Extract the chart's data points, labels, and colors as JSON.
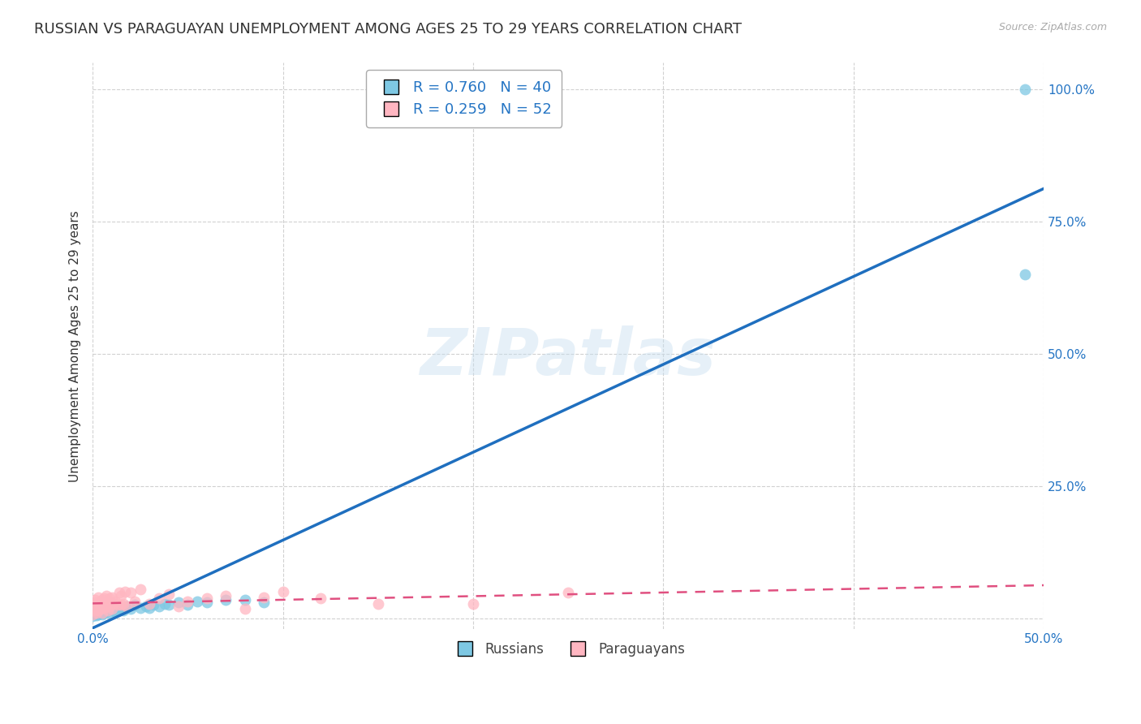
{
  "title": "RUSSIAN VS PARAGUAYAN UNEMPLOYMENT AMONG AGES 25 TO 29 YEARS CORRELATION CHART",
  "source": "Source: ZipAtlas.com",
  "ylabel": "Unemployment Among Ages 25 to 29 years",
  "xlim": [
    0.0,
    0.5
  ],
  "ylim": [
    -0.02,
    1.05
  ],
  "watermark": "ZIPatlas",
  "russian_color": "#7ec8e3",
  "paraguayan_color": "#ffb6c1",
  "russian_line_color": "#1f6fbf",
  "paraguayan_line_color": "#e05080",
  "grid_color": "#cccccc",
  "background_color": "#ffffff",
  "title_fontsize": 13,
  "axis_label_fontsize": 11,
  "tick_fontsize": 11,
  "legend_fontsize": 13,
  "russian_x": [
    0.0,
    0.001,
    0.001,
    0.002,
    0.002,
    0.003,
    0.003,
    0.004,
    0.004,
    0.005,
    0.005,
    0.006,
    0.007,
    0.008,
    0.009,
    0.01,
    0.011,
    0.012,
    0.013,
    0.015,
    0.016,
    0.018,
    0.02,
    0.022,
    0.025,
    0.028,
    0.03,
    0.032,
    0.035,
    0.038,
    0.04,
    0.045,
    0.05,
    0.055,
    0.06,
    0.07,
    0.08,
    0.09,
    0.49,
    0.49
  ],
  "russian_y": [
    0.005,
    0.008,
    0.01,
    0.006,
    0.012,
    0.008,
    0.015,
    0.01,
    0.012,
    0.008,
    0.015,
    0.01,
    0.012,
    0.015,
    0.01,
    0.015,
    0.018,
    0.012,
    0.015,
    0.02,
    0.015,
    0.022,
    0.018,
    0.025,
    0.02,
    0.022,
    0.02,
    0.025,
    0.022,
    0.028,
    0.025,
    0.03,
    0.025,
    0.032,
    0.03,
    0.035,
    0.035,
    0.03,
    0.65,
    1.0
  ],
  "paraguayan_x": [
    0.0,
    0.0,
    0.001,
    0.001,
    0.001,
    0.002,
    0.002,
    0.002,
    0.003,
    0.003,
    0.003,
    0.004,
    0.004,
    0.005,
    0.005,
    0.005,
    0.006,
    0.006,
    0.007,
    0.007,
    0.008,
    0.008,
    0.009,
    0.009,
    0.01,
    0.01,
    0.011,
    0.012,
    0.013,
    0.014,
    0.015,
    0.015,
    0.016,
    0.017,
    0.018,
    0.02,
    0.022,
    0.025,
    0.03,
    0.035,
    0.04,
    0.045,
    0.05,
    0.06,
    0.07,
    0.08,
    0.09,
    0.1,
    0.12,
    0.15,
    0.2,
    0.25
  ],
  "paraguayan_y": [
    0.008,
    0.02,
    0.015,
    0.025,
    0.035,
    0.01,
    0.02,
    0.03,
    0.015,
    0.025,
    0.04,
    0.018,
    0.03,
    0.01,
    0.022,
    0.035,
    0.02,
    0.038,
    0.025,
    0.042,
    0.015,
    0.032,
    0.022,
    0.038,
    0.018,
    0.04,
    0.028,
    0.032,
    0.025,
    0.048,
    0.025,
    0.042,
    0.028,
    0.05,
    0.022,
    0.048,
    0.032,
    0.055,
    0.028,
    0.038,
    0.045,
    0.022,
    0.032,
    0.038,
    0.042,
    0.018,
    0.04,
    0.05,
    0.038,
    0.028,
    0.028,
    0.048
  ]
}
